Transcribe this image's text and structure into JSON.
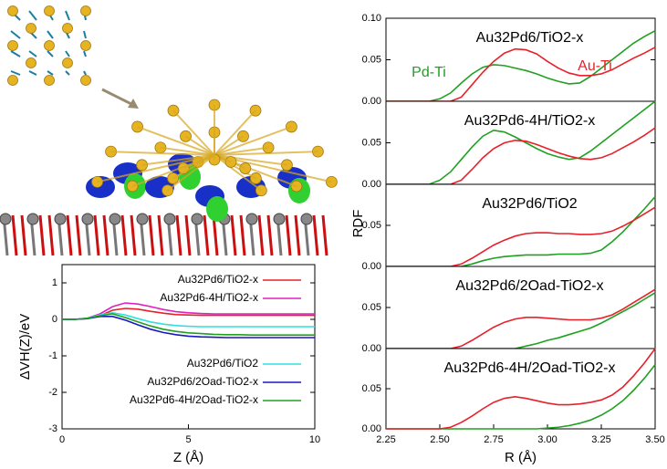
{
  "chart_data": [
    {
      "type": "line",
      "xlabel": "Z (Å)",
      "ylabel": "ΔVH(Z)/eV",
      "x": [
        0,
        0.5,
        1,
        1.5,
        2,
        2.5,
        3,
        3.5,
        4,
        4.5,
        5,
        5.5,
        6,
        6.5,
        7,
        7.5,
        8,
        8.5,
        9,
        9.5,
        10
      ],
      "xlim": [
        0,
        10
      ],
      "xticks": [
        0,
        5,
        10
      ],
      "ylim": [
        -3,
        1.5
      ],
      "yticks": [
        -3,
        -2,
        -1,
        0,
        1
      ],
      "legend": true,
      "series": [
        {
          "name": "Au32Pd6/TiO2-x",
          "color": "#e8202a",
          "values": [
            0,
            0,
            0.02,
            0.1,
            0.25,
            0.3,
            0.28,
            0.22,
            0.17,
            0.13,
            0.12,
            0.11,
            0.11,
            0.11,
            0.11,
            0.11,
            0.11,
            0.11,
            0.11,
            0.11,
            0.11
          ]
        },
        {
          "name": "Au32Pd6-4H/TiO2-x",
          "color": "#e020c0",
          "values": [
            0,
            0,
            0.03,
            0.15,
            0.35,
            0.45,
            0.42,
            0.35,
            0.27,
            0.21,
            0.18,
            0.16,
            0.15,
            0.15,
            0.15,
            0.15,
            0.15,
            0.15,
            0.15,
            0.15,
            0.15
          ]
        },
        {
          "name": "Au32Pd6/TiO2",
          "color": "#30e0e0",
          "values": [
            0,
            0,
            0.03,
            0.12,
            0.18,
            0.12,
            0.02,
            -0.07,
            -0.13,
            -0.17,
            -0.19,
            -0.2,
            -0.2,
            -0.2,
            -0.2,
            -0.2,
            -0.2,
            -0.2,
            -0.2,
            -0.2,
            -0.2
          ]
        },
        {
          "name": "Au32Pd6/2Oad-TiO2-x",
          "color": "#1818c0",
          "values": [
            0,
            0,
            0.02,
            0.08,
            0.08,
            -0.02,
            -0.15,
            -0.27,
            -0.36,
            -0.42,
            -0.46,
            -0.48,
            -0.49,
            -0.5,
            -0.5,
            -0.5,
            -0.5,
            -0.5,
            -0.5,
            -0.5,
            -0.5
          ]
        },
        {
          "name": "Au32Pd6-4H/2Oad-TiO2-x",
          "color": "#20a020",
          "values": [
            0,
            0,
            0.03,
            0.1,
            0.15,
            0.05,
            -0.07,
            -0.18,
            -0.27,
            -0.33,
            -0.37,
            -0.39,
            -0.41,
            -0.42,
            -0.42,
            -0.43,
            -0.43,
            -0.43,
            -0.43,
            -0.43,
            -0.43
          ]
        }
      ]
    },
    {
      "type": "line",
      "title": "Au32Pd6/TiO2-x",
      "ylabel": "RDF",
      "x": [
        2.25,
        2.3,
        2.35,
        2.4,
        2.45,
        2.5,
        2.55,
        2.6,
        2.65,
        2.7,
        2.75,
        2.8,
        2.85,
        2.9,
        2.95,
        3,
        3.05,
        3.1,
        3.15,
        3.2,
        3.25,
        3.3,
        3.35,
        3.4,
        3.45,
        3.5
      ],
      "xlim": [
        2.25,
        3.5
      ],
      "ylim": [
        0,
        0.1
      ],
      "yticks": [
        {
          "value": 0,
          "label": "0.00"
        },
        {
          "value": 0.05,
          "label": "0.05"
        },
        {
          "value": 0.1,
          "label": "0.10"
        }
      ],
      "series": [
        {
          "name": "Pd-Ti",
          "color": "#20a020",
          "values": [
            0,
            0,
            0,
            0,
            0,
            0.003,
            0.01,
            0.022,
            0.033,
            0.041,
            0.044,
            0.043,
            0.04,
            0.037,
            0.033,
            0.028,
            0.024,
            0.021,
            0.022,
            0.03,
            0.04,
            0.05,
            0.06,
            0.07,
            0.078,
            0.085
          ]
        },
        {
          "name": "Au-Ti",
          "color": "#e8202a",
          "values": [
            0,
            0,
            0,
            0,
            0,
            0,
            0,
            0.005,
            0.02,
            0.035,
            0.048,
            0.058,
            0.063,
            0.062,
            0.057,
            0.048,
            0.04,
            0.034,
            0.031,
            0.031,
            0.033,
            0.038,
            0.045,
            0.052,
            0.058,
            0.065
          ]
        }
      ]
    },
    {
      "type": "line",
      "title": "Au32Pd6-4H/TiO2-x",
      "x": [
        2.25,
        2.3,
        2.35,
        2.4,
        2.45,
        2.5,
        2.55,
        2.6,
        2.65,
        2.7,
        2.75,
        2.8,
        2.85,
        2.9,
        2.95,
        3,
        3.05,
        3.1,
        3.15,
        3.2,
        3.25,
        3.3,
        3.35,
        3.4,
        3.45,
        3.5
      ],
      "xlim": [
        2.25,
        3.5
      ],
      "ylim": [
        0,
        0.1
      ],
      "yticks": [
        {
          "value": 0,
          "label": "0.00"
        },
        {
          "value": 0.05,
          "label": "0.05"
        }
      ],
      "series": [
        {
          "color": "#20a020",
          "values": [
            0,
            0,
            0,
            0,
            0,
            0.005,
            0.015,
            0.03,
            0.045,
            0.058,
            0.065,
            0.063,
            0.057,
            0.05,
            0.043,
            0.037,
            0.033,
            0.03,
            0.032,
            0.04,
            0.05,
            0.06,
            0.07,
            0.08,
            0.09,
            0.1
          ]
        },
        {
          "color": "#e8202a",
          "values": [
            0,
            0,
            0,
            0,
            0,
            0,
            0,
            0.005,
            0.018,
            0.032,
            0.043,
            0.05,
            0.053,
            0.052,
            0.048,
            0.043,
            0.038,
            0.034,
            0.031,
            0.03,
            0.032,
            0.037,
            0.044,
            0.051,
            0.059,
            0.068
          ]
        }
      ]
    },
    {
      "type": "line",
      "title": "Au32Pd6/TiO2",
      "x": [
        2.25,
        2.3,
        2.35,
        2.4,
        2.45,
        2.5,
        2.55,
        2.6,
        2.65,
        2.7,
        2.75,
        2.8,
        2.85,
        2.9,
        2.95,
        3,
        3.05,
        3.1,
        3.15,
        3.2,
        3.25,
        3.3,
        3.35,
        3.4,
        3.45,
        3.5
      ],
      "xlim": [
        2.25,
        3.5
      ],
      "ylim": [
        0,
        0.1
      ],
      "yticks": [
        {
          "value": 0,
          "label": "0.00"
        },
        {
          "value": 0.05,
          "label": "0.05"
        }
      ],
      "series": [
        {
          "color": "#20a020",
          "values": [
            0,
            0,
            0,
            0,
            0,
            0,
            0,
            0,
            0.003,
            0.007,
            0.01,
            0.012,
            0.013,
            0.014,
            0.014,
            0.014,
            0.015,
            0.015,
            0.015,
            0.016,
            0.02,
            0.03,
            0.042,
            0.056,
            0.07,
            0.085
          ]
        },
        {
          "color": "#e8202a",
          "values": [
            0,
            0,
            0,
            0,
            0,
            0,
            0,
            0.003,
            0.01,
            0.018,
            0.026,
            0.032,
            0.037,
            0.04,
            0.041,
            0.041,
            0.04,
            0.04,
            0.039,
            0.039,
            0.04,
            0.043,
            0.049,
            0.056,
            0.064,
            0.072
          ]
        }
      ]
    },
    {
      "type": "line",
      "title": "Au32Pd6/2Oad-TiO2-x",
      "x": [
        2.25,
        2.3,
        2.35,
        2.4,
        2.45,
        2.5,
        2.55,
        2.6,
        2.65,
        2.7,
        2.75,
        2.8,
        2.85,
        2.9,
        2.95,
        3,
        3.05,
        3.1,
        3.15,
        3.2,
        3.25,
        3.3,
        3.35,
        3.4,
        3.45,
        3.5
      ],
      "xlim": [
        2.25,
        3.5
      ],
      "ylim": [
        0,
        0.1
      ],
      "yticks": [
        {
          "value": 0,
          "label": "0.00"
        },
        {
          "value": 0.05,
          "label": "0.05"
        }
      ],
      "series": [
        {
          "color": "#20a020",
          "values": [
            0,
            0,
            0,
            0,
            0,
            0,
            0,
            0,
            0,
            0,
            0,
            0,
            0,
            0.003,
            0.006,
            0.01,
            0.013,
            0.017,
            0.021,
            0.025,
            0.031,
            0.038,
            0.045,
            0.052,
            0.06,
            0.068
          ]
        },
        {
          "color": "#e8202a",
          "values": [
            0,
            0,
            0,
            0,
            0,
            0,
            0,
            0.003,
            0.01,
            0.018,
            0.026,
            0.032,
            0.036,
            0.038,
            0.038,
            0.037,
            0.036,
            0.035,
            0.035,
            0.035,
            0.037,
            0.041,
            0.048,
            0.056,
            0.064,
            0.072
          ]
        }
      ]
    },
    {
      "type": "line",
      "title": "Au32Pd6-4H/2Oad-TiO2-x",
      "xlabel": "R (Å)",
      "x": [
        2.25,
        2.3,
        2.35,
        2.4,
        2.45,
        2.5,
        2.55,
        2.6,
        2.65,
        2.7,
        2.75,
        2.8,
        2.85,
        2.9,
        2.95,
        3,
        3.05,
        3.1,
        3.15,
        3.2,
        3.25,
        3.3,
        3.35,
        3.4,
        3.45,
        3.5
      ],
      "xlim": [
        2.25,
        3.5
      ],
      "ylim": [
        0,
        0.1
      ],
      "xticks": [
        2.25,
        {
          "value": 2.5,
          "label": "2.50"
        },
        2.75,
        {
          "value": 3,
          "label": "3.00"
        },
        3.25,
        {
          "value": 3.5,
          "label": "3.50"
        }
      ],
      "yticks": [
        {
          "value": 0,
          "label": "0.00"
        },
        {
          "value": 0.05,
          "label": "0.05"
        }
      ],
      "series": [
        {
          "color": "#20a020",
          "values": [
            0,
            0,
            0,
            0,
            0,
            0,
            0,
            0,
            0,
            0,
            0,
            0,
            0,
            0,
            0,
            0.001,
            0.002,
            0.004,
            0.007,
            0.011,
            0.017,
            0.025,
            0.035,
            0.048,
            0.063,
            0.08
          ]
        },
        {
          "color": "#e8202a",
          "values": [
            0,
            0,
            0,
            0,
            0,
            0,
            0.002,
            0.008,
            0.016,
            0.025,
            0.033,
            0.038,
            0.04,
            0.038,
            0.035,
            0.032,
            0.03,
            0.03,
            0.031,
            0.033,
            0.036,
            0.042,
            0.052,
            0.066,
            0.082,
            0.1
          ]
        }
      ]
    }
  ]
}
